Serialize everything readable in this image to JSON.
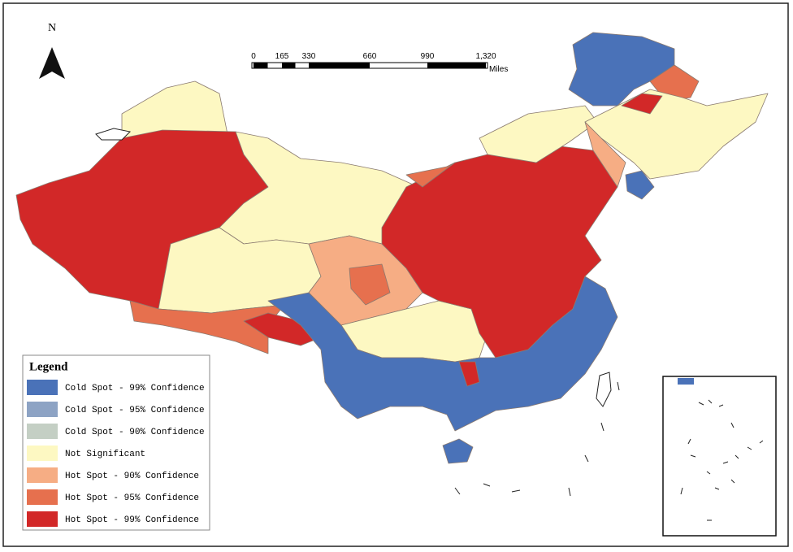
{
  "north_arrow": {
    "label": "N"
  },
  "scale_bar": {
    "labels": [
      "0",
      "165",
      "330",
      "660",
      "990",
      "1,320"
    ],
    "unit": "Miles"
  },
  "legend": {
    "title": "Legend",
    "items": [
      {
        "label": "Cold Spot - 99% Confidence",
        "color": "#4a72b8"
      },
      {
        "label": "Cold Spot - 95% Confidence",
        "color": "#8da3c4"
      },
      {
        "label": "Cold Spot - 90% Confidence",
        "color": "#c4cfc4"
      },
      {
        "label": "Not Significant",
        "color": "#fdf8c2"
      },
      {
        "label": "Hot Spot - 90% Confidence",
        "color": "#f6ad84"
      },
      {
        "label": "Hot Spot - 95% Confidence",
        "color": "#e6704e"
      },
      {
        "label": "Hot Spot - 99% Confidence",
        "color": "#d22828"
      }
    ]
  }
}
